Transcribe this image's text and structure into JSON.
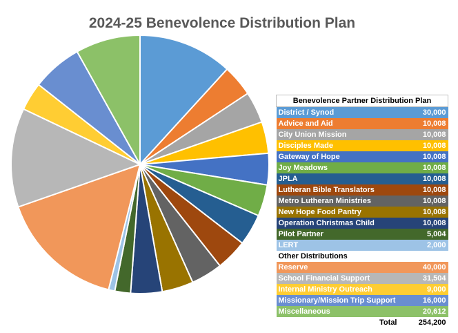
{
  "chart_data": {
    "type": "pie",
    "title": "2024-25 Benevolence Distribution Plan",
    "table_title": "Benevolence Partner Distribution Plan",
    "section_header": "Other Distributions",
    "total_label": "Total",
    "total_value": "254,200",
    "slices": [
      {
        "label": "District / Synod",
        "value": 30000,
        "display": "30,000",
        "color": "#5B9BD5"
      },
      {
        "label": "Advice and Aid",
        "value": 10008,
        "display": "10,008",
        "color": "#ED7D31"
      },
      {
        "label": "City Union Mission",
        "value": 10008,
        "display": "10,008",
        "color": "#A5A5A5"
      },
      {
        "label": "Disciples Made",
        "value": 10008,
        "display": "10,008",
        "color": "#FFC000"
      },
      {
        "label": "Gateway of Hope",
        "value": 10008,
        "display": "10,008",
        "color": "#4472C4"
      },
      {
        "label": "Joy Meadows",
        "value": 10008,
        "display": "10,008",
        "color": "#70AD47"
      },
      {
        "label": "JPLA",
        "value": 10008,
        "display": "10,008",
        "color": "#255E91"
      },
      {
        "label": "Lutheran Bible Translators",
        "value": 10008,
        "display": "10,008",
        "color": "#9E480E"
      },
      {
        "label": "Metro Lutheran Ministries",
        "value": 10008,
        "display": "10,008",
        "color": "#636363"
      },
      {
        "label": "New Hope Food Pantry",
        "value": 10008,
        "display": "10,008",
        "color": "#997300"
      },
      {
        "label": "Operation Christmas Child",
        "value": 10008,
        "display": "10,008",
        "color": "#264478"
      },
      {
        "label": "Pilot Partner",
        "value": 5004,
        "display": "5,004",
        "color": "#43682B"
      },
      {
        "label": "LERT",
        "value": 2000,
        "display": "2,000",
        "color": "#9DC3E6"
      },
      {
        "label": "Reserve",
        "value": 40000,
        "display": "40,000",
        "color": "#F1975A"
      },
      {
        "label": "School Financial Support",
        "value": 31504,
        "display": "31,504",
        "color": "#B7B7B7"
      },
      {
        "label": "Internal Ministry Outreach",
        "value": 9000,
        "display": "9,000",
        "color": "#FFCD33"
      },
      {
        "label": "Missionary/Mission Trip Support",
        "value": 16000,
        "display": "16,000",
        "color": "#698ED0"
      },
      {
        "label": "Miscellaneous",
        "value": 20612,
        "display": "20,612",
        "color": "#8CC168"
      }
    ]
  }
}
